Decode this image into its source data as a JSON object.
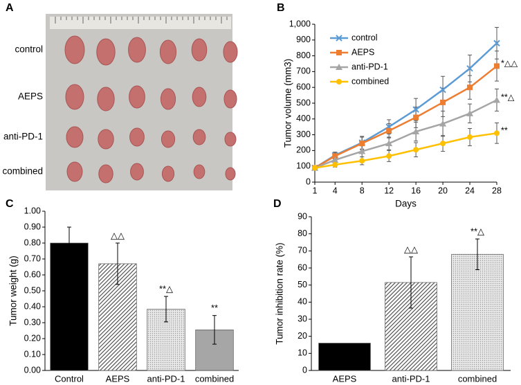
{
  "image_panel": {
    "panel_label": "A",
    "row_labels": [
      "control",
      "AEPS",
      "anti-PD-1",
      "combined"
    ]
  },
  "chart_data": [
    {
      "type": "line",
      "panel_label": "B",
      "x_label": "Days",
      "y_label": "Tumor volume (mm3)",
      "x": [
        1,
        4,
        8,
        12,
        16,
        20,
        24,
        28
      ],
      "xlim": [
        1,
        28
      ],
      "xticks": [
        1,
        4,
        8,
        12,
        16,
        20,
        24,
        28
      ],
      "ylim": [
        0,
        1000
      ],
      "yticks": [
        0,
        100,
        200,
        300,
        400,
        500,
        600,
        700,
        800,
        900,
        {
          "value": 1000,
          "label": "1,000"
        }
      ],
      "legend": "upper left",
      "series": [
        {
          "name": "control",
          "color": "#5b9bd5",
          "marker": "x",
          "values": [
            90,
            170,
            250,
            350,
            460,
            585,
            720,
            880
          ],
          "errors": [
            5,
            20,
            40,
            45,
            70,
            85,
            85,
            100
          ]
        },
        {
          "name": "AEPS",
          "color": "#ed7d31",
          "marker": "square",
          "values": [
            90,
            165,
            245,
            325,
            410,
            505,
            600,
            735
          ],
          "errors": [
            5,
            20,
            40,
            45,
            65,
            90,
            75,
            95
          ]
        },
        {
          "name": "anti-PD-1",
          "color": "#a5a5a5",
          "marker": "triangle",
          "values": [
            90,
            140,
            195,
            245,
            320,
            370,
            435,
            520
          ],
          "errors": [
            5,
            15,
            35,
            40,
            60,
            80,
            60,
            70
          ]
        },
        {
          "name": "combined",
          "color": "#ffc000",
          "marker": "circle",
          "values": [
            90,
            110,
            135,
            165,
            205,
            245,
            285,
            310
          ],
          "errors": [
            5,
            15,
            25,
            35,
            45,
            50,
            55,
            65
          ]
        }
      ],
      "annotations": [
        "*△△",
        "**△",
        "**"
      ]
    },
    {
      "type": "bar",
      "panel_label": "C",
      "y_label": "Tumor weight (g)",
      "categories": [
        "Control",
        "AEPS",
        "anti-PD-1",
        "combined"
      ],
      "values": [
        0.8,
        0.67,
        0.385,
        0.255
      ],
      "errors": [
        0.1,
        0.13,
        0.08,
        0.09
      ],
      "patterns": [
        "solid",
        "hatch",
        "dots",
        "solid"
      ],
      "colors": [
        "#000000",
        "#444444",
        "#999999",
        "#a6a6a6"
      ],
      "annotations": [
        null,
        "△△",
        "**△",
        "**"
      ],
      "ylim": [
        0,
        1
      ],
      "yticks": [
        {
          "value": 0,
          "label": "0.00"
        },
        {
          "value": 0.1,
          "label": "0.10"
        },
        {
          "value": 0.2,
          "label": "0.20"
        },
        {
          "value": 0.3,
          "label": "0.30"
        },
        {
          "value": 0.4,
          "label": "0.40"
        },
        {
          "value": 0.5,
          "label": "0.50"
        },
        {
          "value": 0.6,
          "label": "0.60"
        },
        {
          "value": 0.7,
          "label": "0.70"
        },
        {
          "value": 0.8,
          "label": "0.80"
        },
        {
          "value": 0.9,
          "label": "0.90"
        },
        {
          "value": 1,
          "label": "1.00"
        }
      ]
    },
    {
      "type": "bar",
      "panel_label": "D",
      "y_label": "Tumor inhibition rate (%)",
      "categories": [
        "AEPS",
        "anti-PD-1",
        "combined"
      ],
      "values": [
        16,
        51.5,
        68
      ],
      "errors": [
        null,
        15,
        9
      ],
      "patterns": [
        "solid",
        "hatch",
        "dots"
      ],
      "colors": [
        "#000000",
        "#444444",
        "#999999"
      ],
      "annotations": [
        null,
        "△△",
        "**△"
      ],
      "ylim": [
        0,
        90
      ],
      "yticks": [
        0,
        10,
        20,
        30,
        40,
        50,
        60,
        70,
        80,
        90
      ]
    }
  ]
}
